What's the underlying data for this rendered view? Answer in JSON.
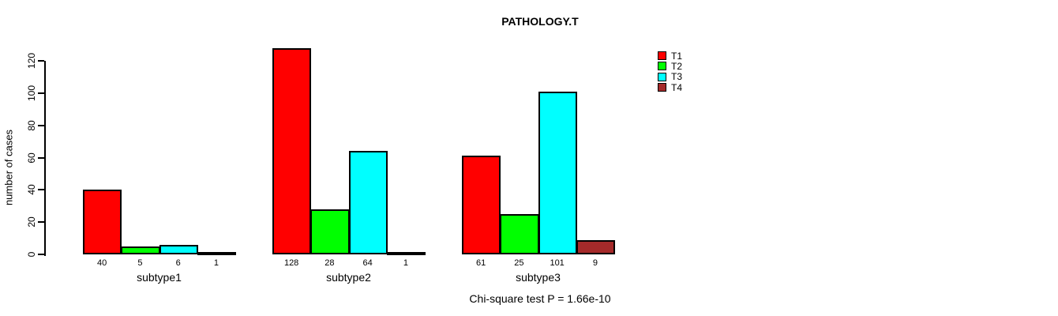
{
  "title": "PATHOLOGY.T",
  "footnote": "Chi-square test P = 1.66e-10",
  "chart_data": {
    "type": "bar",
    "title": "PATHOLOGY.T",
    "xlabel": "",
    "ylabel": "number of cases",
    "categories": [
      "subtype1",
      "subtype2",
      "subtype3"
    ],
    "series": [
      {
        "name": "T1",
        "color": "#ff0000",
        "values": [
          40,
          128,
          61
        ]
      },
      {
        "name": "T2",
        "color": "#00ff00",
        "values": [
          5,
          28,
          25
        ]
      },
      {
        "name": "T3",
        "color": "#00ffff",
        "values": [
          6,
          64,
          101
        ]
      },
      {
        "name": "T4",
        "color": "#a52a2a",
        "values": [
          1,
          1,
          9
        ]
      }
    ],
    "bar_value_labels": [
      [
        "40",
        "5",
        "6",
        "1"
      ],
      [
        "128",
        "28",
        "64",
        "1"
      ],
      [
        "61",
        "25",
        "101",
        "9"
      ]
    ],
    "yticks": [
      0,
      20,
      40,
      60,
      80,
      100,
      120
    ],
    "ylim": [
      0,
      128
    ],
    "grid": false,
    "legend_position": "top-right",
    "annotation": "Chi-square test P = 1.66e-10",
    "background_color": "#ffffff",
    "axis_color": "#000000"
  }
}
